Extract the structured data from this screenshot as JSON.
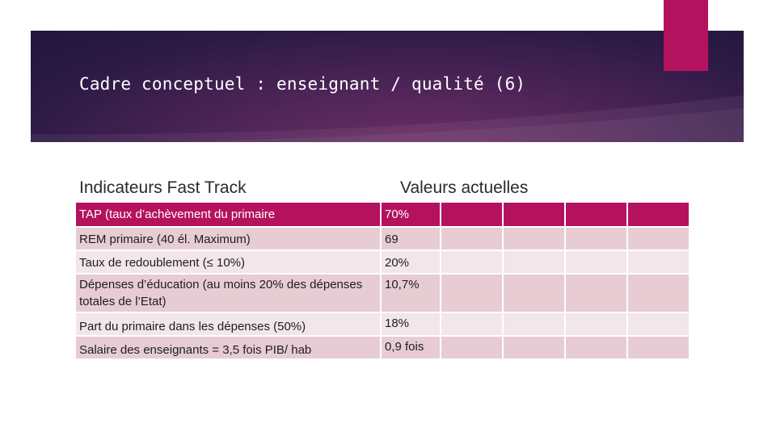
{
  "slide": {
    "title": "Cadre conceptuel : enseignant / qualité (6)",
    "colors": {
      "banner": "#2c1a45",
      "accent": "#b3125f",
      "header_row": "#b5125e",
      "row_dark": "#e7ccd4",
      "row_light": "#f2e6ea"
    }
  },
  "table": {
    "headers": [
      "Indicateurs Fast Track",
      "Valeurs actuelles"
    ],
    "rows": [
      {
        "indicator": "TAP (taux d’achèvement du primaire",
        "value": "70%"
      },
      {
        "indicator": "REM primaire (40 él. Maximum)",
        "value": "69"
      },
      {
        "indicator": "Taux de redoublement (≤ 10%)",
        "value": "20%"
      },
      {
        "indicator": "Dépenses d’éducation (au moins 20% des dépenses totales de l’Etat)",
        "value": "10,7%"
      },
      {
        "indicator": "Part du primaire dans les dépenses (50%)",
        "value": "18%"
      },
      {
        "indicator": "Salaire des enseignants = 3,5 fois PIB/ hab",
        "value": "0,9 fois"
      }
    ]
  }
}
